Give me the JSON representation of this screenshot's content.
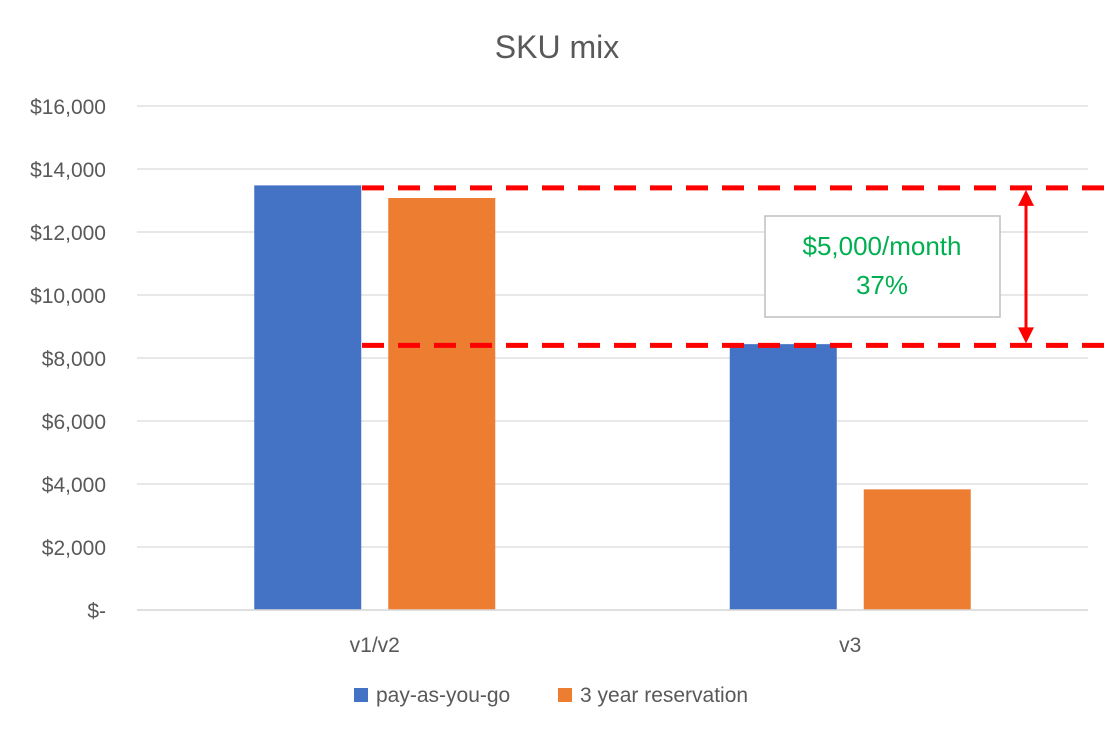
{
  "chart_data": {
    "type": "bar",
    "title": "SKU mix",
    "categories": [
      "v1/v2",
      "v3"
    ],
    "series": [
      {
        "name": "pay-as-you-go",
        "color": "#4472C4",
        "values": [
          13480,
          8440
        ]
      },
      {
        "name": "3 year reservation",
        "color": "#ED7D31",
        "values": [
          13080,
          3830
        ]
      }
    ],
    "ylim": [
      0,
      16000
    ],
    "yticks": [
      {
        "value": 0,
        "label": "$-"
      },
      {
        "value": 2000,
        "label": "$2,000"
      },
      {
        "value": 4000,
        "label": "$4,000"
      },
      {
        "value": 6000,
        "label": "$6,000"
      },
      {
        "value": 8000,
        "label": "$8,000"
      },
      {
        "value": 10000,
        "label": "$10,000"
      },
      {
        "value": 12000,
        "label": "$12,000"
      },
      {
        "value": 14000,
        "label": "$14,000"
      },
      {
        "value": 16000,
        "label": "$16,000"
      }
    ],
    "grid": true,
    "legend_position": "bottom",
    "annotation": {
      "reference_lines": [
        13400,
        8400
      ],
      "line_color": "#FF0000",
      "text_color": "#00B050",
      "lines": [
        "$5,000/month",
        "37%"
      ]
    }
  }
}
